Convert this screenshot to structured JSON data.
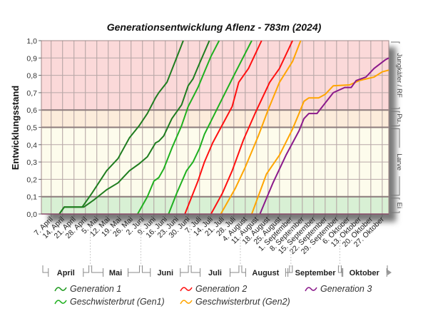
{
  "chart_data": {
    "type": "line",
    "title": "Generationsentwicklung Aflenz - 783m (2024)",
    "xlabel": "",
    "ylabel": "Entwicklungsstand",
    "xlim": [
      "2024-04-01",
      "2024-10-31"
    ],
    "ylim": [
      0,
      1
    ],
    "grid": true,
    "legend_position": "bottom",
    "y_ticks": [
      {
        "value": 0.0,
        "label": "0,0"
      },
      {
        "value": 0.1,
        "label": "0,1"
      },
      {
        "value": 0.2,
        "label": "0,2"
      },
      {
        "value": 0.3,
        "label": "0,3"
      },
      {
        "value": 0.4,
        "label": "0,4"
      },
      {
        "value": 0.5,
        "label": "0,5"
      },
      {
        "value": 0.6,
        "label": "0,6"
      },
      {
        "value": 0.7,
        "label": "0,7"
      },
      {
        "value": 0.8,
        "label": "0,8"
      },
      {
        "value": 0.9,
        "label": "0,9"
      },
      {
        "value": 1.0,
        "label": "1,0"
      }
    ],
    "x_ticks": [
      {
        "date": "2024-04-07",
        "label": "7. April"
      },
      {
        "date": "2024-04-14",
        "label": "14. April"
      },
      {
        "date": "2024-04-21",
        "label": "21. April"
      },
      {
        "date": "2024-04-28",
        "label": "28. April"
      },
      {
        "date": "2024-05-05",
        "label": "5. Mai"
      },
      {
        "date": "2024-05-12",
        "label": "12. Mai"
      },
      {
        "date": "2024-05-19",
        "label": "19. Mai"
      },
      {
        "date": "2024-05-26",
        "label": "26. Mai"
      },
      {
        "date": "2024-06-02",
        "label": "2. Juni"
      },
      {
        "date": "2024-06-09",
        "label": "9. Juni"
      },
      {
        "date": "2024-06-16",
        "label": "16. Juni"
      },
      {
        "date": "2024-06-23",
        "label": "23. Juni"
      },
      {
        "date": "2024-06-30",
        "label": "30. Juni"
      },
      {
        "date": "2024-07-07",
        "label": "7. Juli"
      },
      {
        "date": "2024-07-14",
        "label": "14. Juli"
      },
      {
        "date": "2024-07-21",
        "label": "21. Juli"
      },
      {
        "date": "2024-07-28",
        "label": "28. Juli"
      },
      {
        "date": "2024-08-04",
        "label": "4. August"
      },
      {
        "date": "2024-08-11",
        "label": "11. August"
      },
      {
        "date": "2024-08-18",
        "label": "18. August"
      },
      {
        "date": "2024-08-25",
        "label": "25. August"
      },
      {
        "date": "2024-09-01",
        "label": "1. September"
      },
      {
        "date": "2024-09-08",
        "label": "8. September"
      },
      {
        "date": "2024-09-15",
        "label": "15. September"
      },
      {
        "date": "2024-09-22",
        "label": "22. September"
      },
      {
        "date": "2024-09-29",
        "label": "29. September"
      },
      {
        "date": "2024-10-06",
        "label": "6. Oktober"
      },
      {
        "date": "2024-10-13",
        "label": "13. Oktober"
      },
      {
        "date": "2024-10-20",
        "label": "20. Oktober"
      },
      {
        "date": "2024-10-27",
        "label": "27. Oktober"
      }
    ],
    "months": [
      {
        "label": "April",
        "start": "2024-04-01",
        "end": "2024-05-01"
      },
      {
        "label": "Mai",
        "start": "2024-05-01",
        "end": "2024-06-01"
      },
      {
        "label": "Juni",
        "start": "2024-06-01",
        "end": "2024-07-01"
      },
      {
        "label": "Juli",
        "start": "2024-07-01",
        "end": "2024-08-01"
      },
      {
        "label": "August",
        "start": "2024-08-01",
        "end": "2024-09-01"
      },
      {
        "label": "September",
        "start": "2024-09-01",
        "end": "2024-10-01"
      },
      {
        "label": "Oktober",
        "start": "2024-10-01",
        "end": "2024-10-31"
      }
    ],
    "stages": [
      {
        "label": "Ei",
        "from": 0.0,
        "to": 0.1,
        "color": "#d8f0d4"
      },
      {
        "label": "Larve",
        "from": 0.1,
        "to": 0.5,
        "color": "#fdfcec"
      },
      {
        "label": "Pu.",
        "from": 0.5,
        "to": 0.6,
        "color": "#fcecdb"
      },
      {
        "label": "Jungkäfer / RF",
        "from": 0.6,
        "to": 1.0,
        "color": "#fbd9d9"
      }
    ],
    "series": [
      {
        "name": "Generation 1",
        "color": "#1f7d1f",
        "lines": [
          [
            [
              "2024-04-12",
              0
            ],
            [
              "2024-04-15",
              0.04
            ],
            [
              "2024-04-26",
              0.04
            ],
            [
              "2024-05-02",
              0.12
            ],
            [
              "2024-05-11",
              0.25
            ],
            [
              "2024-05-18",
              0.32
            ],
            [
              "2024-05-25",
              0.44
            ],
            [
              "2024-05-31",
              0.51
            ],
            [
              "2024-06-05",
              0.58
            ],
            [
              "2024-06-10",
              0.67
            ],
            [
              "2024-06-12",
              0.7
            ],
            [
              "2024-06-17",
              0.76
            ],
            [
              "2024-06-22",
              0.88
            ],
            [
              "2024-06-27",
              1.0
            ]
          ],
          [
            [
              "2024-04-12",
              0
            ],
            [
              "2024-04-15",
              0.04
            ],
            [
              "2024-04-27",
              0.04
            ],
            [
              "2024-05-03",
              0.08
            ],
            [
              "2024-05-11",
              0.14
            ],
            [
              "2024-05-18",
              0.18
            ],
            [
              "2024-05-25",
              0.25
            ],
            [
              "2024-05-31",
              0.29
            ],
            [
              "2024-06-05",
              0.33
            ],
            [
              "2024-06-10",
              0.41
            ],
            [
              "2024-06-12",
              0.42
            ],
            [
              "2024-06-15",
              0.45
            ],
            [
              "2024-06-20",
              0.55
            ],
            [
              "2024-06-26",
              0.63
            ],
            [
              "2024-06-30",
              0.74
            ],
            [
              "2024-07-03",
              0.78
            ],
            [
              "2024-07-07",
              0.87
            ],
            [
              "2024-07-13",
              1.0
            ]
          ]
        ]
      },
      {
        "name": "Geschwisterbrut (Gen1)",
        "color": "#1fb01f",
        "lines": [
          [
            [
              "2024-05-30",
              0
            ],
            [
              "2024-06-05",
              0.1
            ],
            [
              "2024-06-09",
              0.19
            ],
            [
              "2024-06-12",
              0.21
            ],
            [
              "2024-06-15",
              0.26
            ],
            [
              "2024-06-20",
              0.38
            ],
            [
              "2024-06-26",
              0.51
            ],
            [
              "2024-06-30",
              0.62
            ],
            [
              "2024-07-06",
              0.73
            ],
            [
              "2024-07-10",
              0.82
            ],
            [
              "2024-07-14",
              0.91
            ],
            [
              "2024-07-19",
              1.0
            ]
          ],
          [
            [
              "2024-06-18",
              0
            ],
            [
              "2024-06-23",
              0.12
            ],
            [
              "2024-06-29",
              0.25
            ],
            [
              "2024-07-03",
              0.3
            ],
            [
              "2024-07-07",
              0.38
            ],
            [
              "2024-07-10",
              0.46
            ],
            [
              "2024-07-19",
              0.63
            ],
            [
              "2024-07-27",
              0.78
            ],
            [
              "2024-08-02",
              0.89
            ],
            [
              "2024-08-08",
              1.0
            ]
          ]
        ]
      },
      {
        "name": "Generation 2",
        "color": "#ff1010",
        "lines": [
          [
            [
              "2024-06-28",
              0
            ],
            [
              "2024-07-06",
              0.19
            ],
            [
              "2024-07-10",
              0.3
            ],
            [
              "2024-07-15",
              0.41
            ],
            [
              "2024-07-19",
              0.48
            ],
            [
              "2024-07-27",
              0.62
            ],
            [
              "2024-07-31",
              0.76
            ],
            [
              "2024-08-06",
              0.84
            ],
            [
              "2024-08-14",
              1.0
            ]
          ],
          [
            [
              "2024-07-14",
              0
            ],
            [
              "2024-07-21",
              0.12
            ],
            [
              "2024-07-27",
              0.25
            ],
            [
              "2024-08-03",
              0.43
            ],
            [
              "2024-08-10",
              0.58
            ],
            [
              "2024-08-19",
              0.76
            ],
            [
              "2024-08-25",
              0.84
            ],
            [
              "2024-09-02",
              1.0
            ]
          ]
        ]
      },
      {
        "name": "Geschwisterbrut (Gen2)",
        "color": "#ffa500",
        "lines": [
          [
            [
              "2024-07-20",
              0
            ],
            [
              "2024-07-29",
              0.15
            ],
            [
              "2024-08-04",
              0.27
            ],
            [
              "2024-08-12",
              0.45
            ],
            [
              "2024-08-18",
              0.6
            ],
            [
              "2024-08-25",
              0.76
            ],
            [
              "2024-09-02",
              0.88
            ],
            [
              "2024-09-07",
              1.0
            ]
          ],
          [
            [
              "2024-08-08",
              0
            ],
            [
              "2024-08-17",
              0.23
            ],
            [
              "2024-08-25",
              0.34
            ],
            [
              "2024-09-02",
              0.49
            ],
            [
              "2024-09-06",
              0.58
            ],
            [
              "2024-09-09",
              0.65
            ],
            [
              "2024-09-12",
              0.67
            ],
            [
              "2024-09-18",
              0.67
            ],
            [
              "2024-09-22",
              0.69
            ],
            [
              "2024-09-27",
              0.74
            ],
            [
              "2024-10-07",
              0.745
            ],
            [
              "2024-10-13",
              0.77
            ],
            [
              "2024-10-22",
              0.79
            ],
            [
              "2024-10-27",
              0.82
            ],
            [
              "2024-10-31",
              0.83
            ]
          ]
        ]
      },
      {
        "name": "Generation 3",
        "color": "#8b1a8b",
        "lines": [
          [
            [
              "2024-08-13",
              0
            ],
            [
              "2024-08-21",
              0.18
            ],
            [
              "2024-08-29",
              0.34
            ],
            [
              "2024-09-06",
              0.48
            ],
            [
              "2024-09-09",
              0.55
            ],
            [
              "2024-09-12",
              0.58
            ],
            [
              "2024-09-17",
              0.58
            ],
            [
              "2024-09-22",
              0.64
            ],
            [
              "2024-09-27",
              0.7
            ],
            [
              "2024-10-04",
              0.73
            ],
            [
              "2024-10-08",
              0.73
            ],
            [
              "2024-10-11",
              0.77
            ],
            [
              "2024-10-17",
              0.79
            ],
            [
              "2024-10-22",
              0.84
            ],
            [
              "2024-10-29",
              0.89
            ],
            [
              "2024-10-31",
              0.9
            ]
          ]
        ]
      }
    ]
  }
}
